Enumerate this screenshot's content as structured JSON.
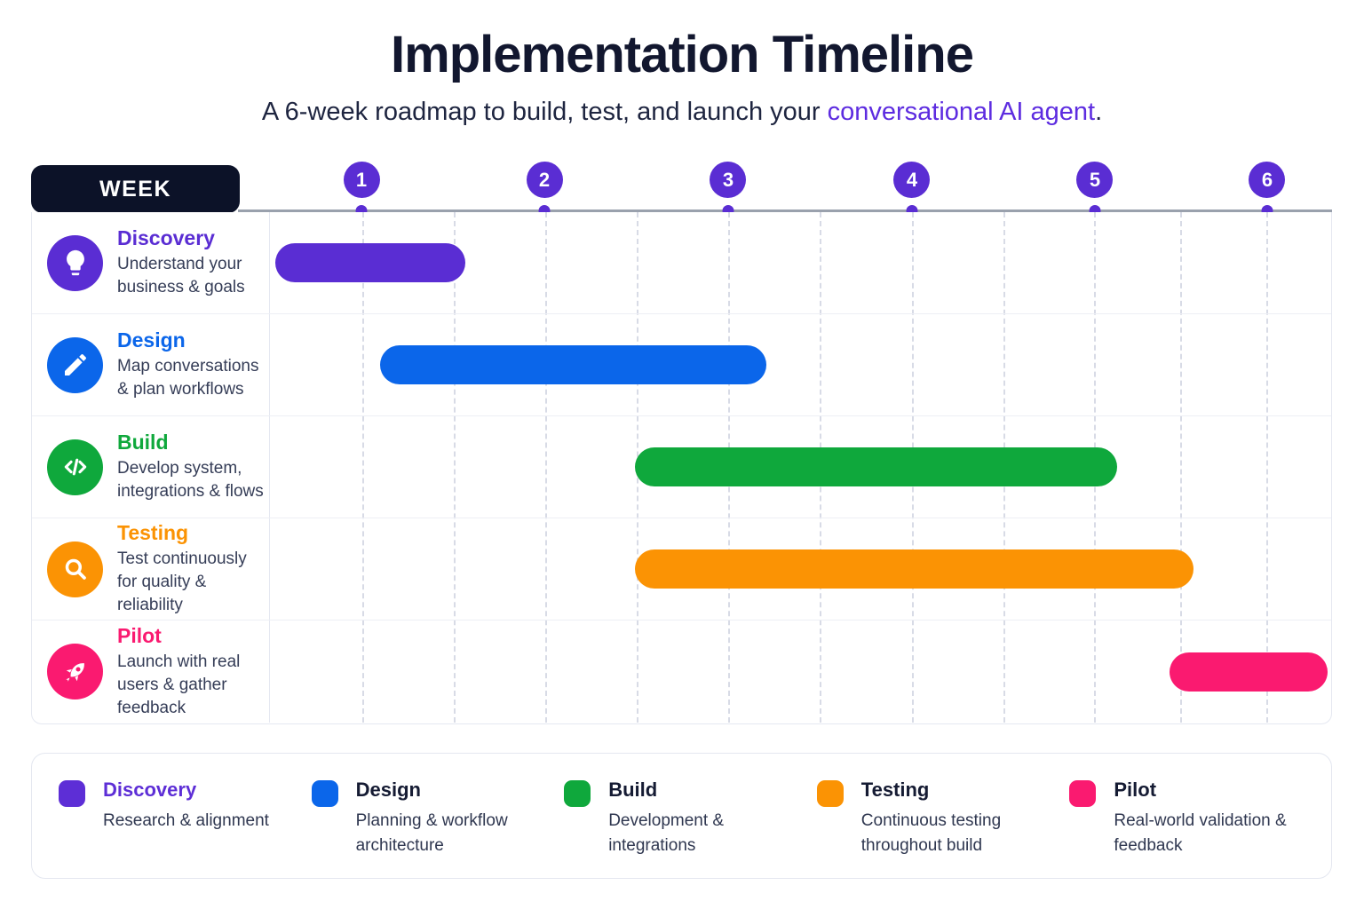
{
  "header": {
    "title": "Implementation Timeline",
    "subtitle_prefix": "A 6-week roadmap to build, test, and launch your ",
    "subtitle_highlight": "conversational AI agent",
    "subtitle_suffix": "."
  },
  "week_axis": {
    "label": "WEEK",
    "weeks": [
      {
        "num": "1",
        "pct": 8.69
      },
      {
        "num": "2",
        "pct": 25.9
      },
      {
        "num": "3",
        "pct": 43.19
      },
      {
        "num": "4",
        "pct": 60.48
      },
      {
        "num": "5",
        "pct": 77.69
      },
      {
        "num": "6",
        "pct": 93.9
      }
    ]
  },
  "chart_data": {
    "type": "bar",
    "subtype": "gantt",
    "x_unit": "weeks",
    "x_range": [
      0,
      6
    ],
    "grid": "dashed-vertical-half-week",
    "rows": [
      {
        "id": "discovery",
        "label": "Discovery",
        "description": "Understand your business & goals",
        "icon": "lightbulb-icon",
        "color": "#5a2dd3",
        "start_week": 0.0,
        "end_week": 1.1,
        "bar_left_pct": 0.5,
        "bar_width_pct": 17.9
      },
      {
        "id": "design",
        "label": "Design",
        "description": "Map conversations & plan workflows",
        "icon": "pencil-icon",
        "color": "#0b66ea",
        "start_week": 0.6,
        "end_week": 2.7,
        "bar_left_pct": 10.4,
        "bar_width_pct": 36.4
      },
      {
        "id": "build",
        "label": "Build",
        "description": "Develop system, integrations & flows",
        "icon": "code-icon",
        "color": "#0fa83c",
        "start_week": 2.0,
        "end_week": 4.6,
        "bar_left_pct": 34.4,
        "bar_width_pct": 45.4
      },
      {
        "id": "testing",
        "label": "Testing",
        "description": "Test continuously for quality & reliability",
        "icon": "magnifier-icon",
        "color": "#fb9304",
        "start_week": 2.0,
        "end_week": 5.0,
        "bar_left_pct": 34.4,
        "bar_width_pct": 52.6
      },
      {
        "id": "pilot",
        "label": "Pilot",
        "description": "Launch with real users & gather feedback",
        "icon": "rocket-icon",
        "color": "#fa1a70",
        "start_week": 4.9,
        "end_week": 6.0,
        "bar_left_pct": 84.8,
        "bar_width_pct": 14.9
      }
    ]
  },
  "legend": {
    "items": [
      {
        "label": "Discovery",
        "description": "Research & alignment",
        "color": "#5d2ed6",
        "label_color": "#5d2ed6"
      },
      {
        "label": "Design",
        "description": "Planning & workflow architecture",
        "color": "#0b66ea",
        "label_color": "#151b33"
      },
      {
        "label": "Build",
        "description": "Development & integrations",
        "color": "#0fa83c",
        "label_color": "#151b33"
      },
      {
        "label": "Testing",
        "description": "Continuous testing throughout build",
        "color": "#fb9304",
        "label_color": "#151b33"
      },
      {
        "label": "Pilot",
        "description": "Real-world validation & feedback",
        "color": "#fa1a70",
        "label_color": "#151b33"
      }
    ]
  }
}
